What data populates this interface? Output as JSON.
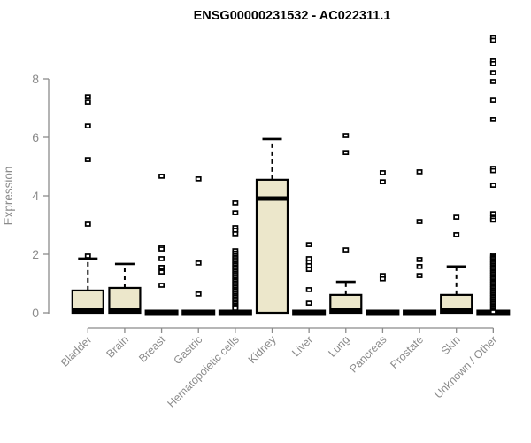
{
  "chart_data": {
    "type": "boxplot",
    "title": "ENSG00000231532 - AC022311.1",
    "xlabel": "",
    "ylabel": "Expression",
    "ylim": [
      0,
      9.5
    ],
    "yticks": [
      0,
      2,
      4,
      6,
      8
    ],
    "grid": false,
    "legend": "none",
    "categories": [
      "Bladder",
      "Brain",
      "Breast",
      "Gastric",
      "Hematopoietic cells",
      "Kidney",
      "Liver",
      "Lung",
      "Pancreas",
      "Prostate",
      "Skin",
      "Unknown / Other"
    ],
    "boxes": [
      {
        "label": "Bladder",
        "flat": false,
        "q1": 0,
        "median": 0.03,
        "q3": 0.76,
        "whisker_low": 0,
        "whisker_high": 1.85,
        "outliers": [
          7.39,
          7.21,
          6.39,
          5.24,
          3.03,
          1.94
        ]
      },
      {
        "label": "Brain",
        "flat": false,
        "q1": 0,
        "median": 0.03,
        "q3": 0.85,
        "whisker_low": 0,
        "whisker_high": 1.67,
        "outliers": []
      },
      {
        "label": "Breast",
        "flat": true,
        "q1": 0,
        "median": 0,
        "q3": 0,
        "whisker_low": 0,
        "whisker_high": 0,
        "outliers": [
          4.67,
          2.24,
          2.18,
          1.85,
          1.55,
          1.39,
          0.94
        ]
      },
      {
        "label": "Gastric",
        "flat": true,
        "q1": 0,
        "median": 0,
        "q3": 0,
        "whisker_low": 0,
        "whisker_high": 0,
        "outliers": [
          4.58,
          1.7,
          0.64
        ]
      },
      {
        "label": "Hematopoietic cells",
        "flat": true,
        "q1": 0,
        "median": 0,
        "q3": 0,
        "whisker_low": 0,
        "whisker_high": 0,
        "outliers": [
          3.76,
          3.42,
          2.91,
          2.82,
          2.7,
          2.12,
          2.04,
          1.96,
          1.9,
          1.85,
          1.79,
          1.74,
          1.68,
          1.63,
          1.57,
          1.52,
          1.46,
          1.41,
          1.35,
          1.3,
          1.24,
          1.19,
          1.13,
          1.08,
          1.02,
          0.97,
          0.91,
          0.86,
          0.8,
          0.75,
          0.69,
          0.64,
          0.58,
          0.53,
          0.47,
          0.42,
          0.36,
          0.31,
          0.25,
          0.2,
          0.15
        ]
      },
      {
        "label": "Kidney",
        "flat": false,
        "q1": 0,
        "median": 3.91,
        "q3": 4.55,
        "whisker_low": 0,
        "whisker_high": 5.94,
        "outliers": []
      },
      {
        "label": "Liver",
        "flat": true,
        "q1": 0,
        "median": 0,
        "q3": 0,
        "whisker_low": 0,
        "whisker_high": 0,
        "outliers": [
          2.33,
          1.85,
          1.73,
          1.61,
          1.48,
          0.79,
          0.33
        ]
      },
      {
        "label": "Lung",
        "flat": false,
        "q1": 0,
        "median": 0.03,
        "q3": 0.61,
        "whisker_low": 0,
        "whisker_high": 1.06,
        "outliers": [
          6.06,
          5.48,
          2.15
        ]
      },
      {
        "label": "Pancreas",
        "flat": true,
        "q1": 0,
        "median": 0,
        "q3": 0,
        "whisker_low": 0,
        "whisker_high": 0,
        "outliers": [
          4.79,
          4.48,
          1.27,
          1.16
        ]
      },
      {
        "label": "Prostate",
        "flat": true,
        "q1": 0,
        "median": 0,
        "q3": 0,
        "whisker_low": 0,
        "whisker_high": 0,
        "outliers": [
          4.82,
          3.12,
          1.82,
          1.58,
          1.27
        ]
      },
      {
        "label": "Skin",
        "flat": false,
        "q1": 0,
        "median": 0.03,
        "q3": 0.61,
        "whisker_low": 0,
        "whisker_high": 1.58,
        "outliers": [
          3.27,
          2.67
        ]
      },
      {
        "label": "Unknown / Other",
        "flat": true,
        "q1": 0,
        "median": 0,
        "q3": 0,
        "whisker_low": 0,
        "whisker_high": 0,
        "outliers": [
          9.41,
          9.32,
          8.61,
          8.52,
          8.21,
          7.91,
          7.27,
          6.61,
          4.94,
          4.86,
          4.36,
          3.39,
          3.24,
          3.17,
          1.97,
          1.92,
          1.87,
          1.82,
          1.77,
          1.72,
          1.67,
          1.62,
          1.57,
          1.52,
          1.47,
          1.42,
          1.37,
          1.32,
          1.27,
          1.22,
          1.17,
          1.12,
          1.07,
          1.02,
          0.97,
          0.92,
          0.87,
          0.82,
          0.77,
          0.72,
          0.67,
          0.62,
          0.57,
          0.52,
          0.47,
          0.42,
          0.37,
          0.32,
          0.27,
          0.22,
          0.17,
          0.12,
          0.07,
          0.03
        ]
      }
    ]
  },
  "colors": {
    "box_fill": "#ECE7CB",
    "box_stroke": "#000000",
    "median": "#000000",
    "whisker": "#000000",
    "outlier_stroke": "#000000",
    "outlier_fill": "#FFFFFF",
    "axis": "#8b8b8b",
    "text_gray": "#8b8b8b",
    "title_color": "#000000",
    "background": "#FFFFFF"
  }
}
